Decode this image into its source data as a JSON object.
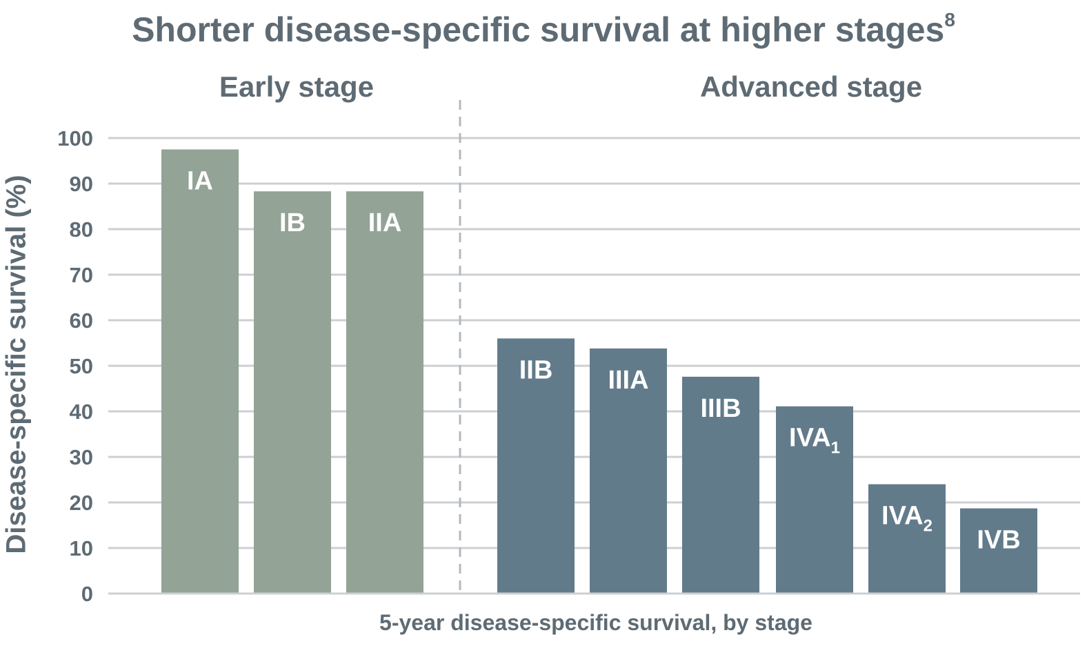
{
  "chart_data": {
    "type": "bar",
    "title": "Shorter disease-specific survival at higher stages",
    "title_superscript": "8",
    "xlabel": "5-year disease-specific survival, by stage",
    "ylabel": "Disease-specific survival (%)",
    "ylim": [
      0,
      100
    ],
    "yticks": [
      0,
      10,
      20,
      30,
      40,
      50,
      60,
      70,
      80,
      90,
      100
    ],
    "grid": true,
    "groups": [
      {
        "label": "Early stage",
        "color": "#93a396",
        "bars": [
          {
            "label": "IA",
            "subscript": "",
            "value": 97.5
          },
          {
            "label": "IB",
            "subscript": "",
            "value": 88.3
          },
          {
            "label": "IIA",
            "subscript": "",
            "value": 88.3
          }
        ]
      },
      {
        "label": "Advanced stage",
        "color": "#627b8b",
        "bars": [
          {
            "label": "IIB",
            "subscript": "",
            "value": 56
          },
          {
            "label": "IIIA",
            "subscript": "",
            "value": 53.8
          },
          {
            "label": "IIIB",
            "subscript": "",
            "value": 47.6
          },
          {
            "label": "IVA",
            "subscript": "1",
            "value": 41.1
          },
          {
            "label": "IVA",
            "subscript": "2",
            "value": 24
          },
          {
            "label": "IVB",
            "subscript": "",
            "value": 18.7
          }
        ]
      }
    ]
  },
  "colors": {
    "text": "#5e6b74",
    "grid": "#cccfd2",
    "divider": "#b3b8bc",
    "bar_label": "#ffffff"
  }
}
